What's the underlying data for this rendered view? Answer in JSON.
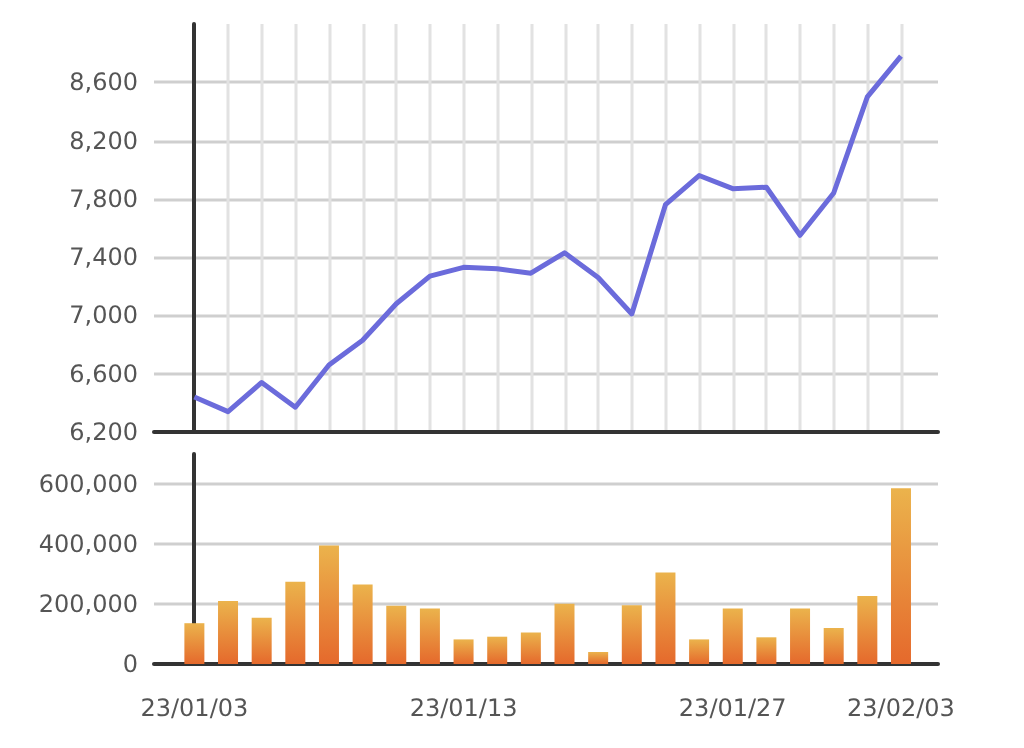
{
  "chart_data": [
    {
      "type": "line",
      "categories": [
        null,
        null,
        null,
        null,
        null,
        null,
        null,
        null,
        null,
        null,
        null,
        null,
        null,
        null,
        null,
        null,
        null,
        null,
        null,
        null,
        null,
        null
      ],
      "series": [
        {
          "color": "#6b6bdb",
          "values": [
            6440,
            6340,
            6540,
            6370,
            6660,
            6830,
            7080,
            7270,
            7330,
            7320,
            7290,
            7430,
            7260,
            7010,
            7760,
            7960,
            7870,
            7880,
            7550,
            7840,
            8500,
            8780
          ]
        }
      ],
      "ylim": [
        6200,
        9000
      ],
      "yticks": [
        {
          "value": 6200,
          "label": "6,200"
        },
        {
          "value": 6600,
          "label": "6,600"
        },
        {
          "value": 7000,
          "label": "7,000"
        },
        {
          "value": 7400,
          "label": "7,400"
        },
        {
          "value": 7800,
          "label": "7,800"
        },
        {
          "value": 8200,
          "label": "8,200"
        },
        {
          "value": 8600,
          "label": "8,600"
        }
      ],
      "grid": true,
      "tick_labels": "y",
      "marker": "none",
      "line_style": "solid"
    },
    {
      "type": "bar",
      "categories": [
        "23/01/03",
        null,
        null,
        null,
        null,
        null,
        null,
        null,
        "23/01/13",
        null,
        null,
        null,
        null,
        null,
        null,
        null,
        "23/01/27",
        null,
        null,
        null,
        null,
        "23/02/03"
      ],
      "series": [
        {
          "color": "#e5692c",
          "values": [
            136000,
            210000,
            154000,
            274000,
            395000,
            265000,
            194000,
            185000,
            82000,
            91000,
            105000,
            201000,
            40000,
            196000,
            305000,
            82000,
            185000,
            89000,
            185000,
            120000,
            227000,
            586000
          ]
        }
      ],
      "ylim": [
        0,
        700000
      ],
      "yticks": [
        0,
        {
          "value": 200000,
          "label": "200,000"
        },
        {
          "value": 400000,
          "label": "400,000"
        },
        {
          "value": 600000,
          "label": "600,000"
        }
      ],
      "grid": "y"
    }
  ]
}
